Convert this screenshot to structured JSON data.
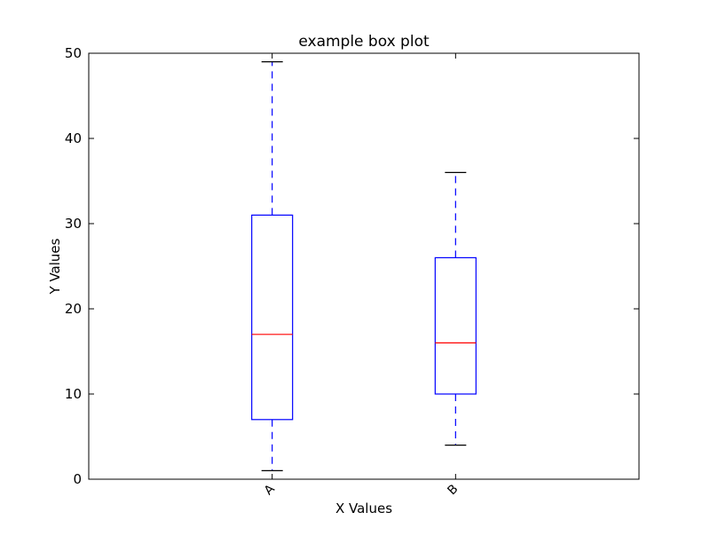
{
  "chart_data": {
    "type": "box",
    "title": "example box plot",
    "xlabel": "X Values",
    "ylabel": "Y Values",
    "ylim": [
      0,
      50
    ],
    "yticks": [
      0,
      10,
      20,
      30,
      40,
      50
    ],
    "categories": [
      "A",
      "B"
    ],
    "boxes": [
      {
        "category": "A",
        "whisker_low": 1,
        "q1": 7,
        "median": 17,
        "q3": 31,
        "whisker_high": 49
      },
      {
        "category": "B",
        "whisker_low": 4,
        "q1": 10,
        "median": 16,
        "q3": 26,
        "whisker_high": 36
      }
    ],
    "grid": false,
    "colors": {
      "box": "#0000ff",
      "median": "#ff0000",
      "whisker": "#0000ff",
      "cap": "#000000",
      "axes": "#000000"
    }
  }
}
